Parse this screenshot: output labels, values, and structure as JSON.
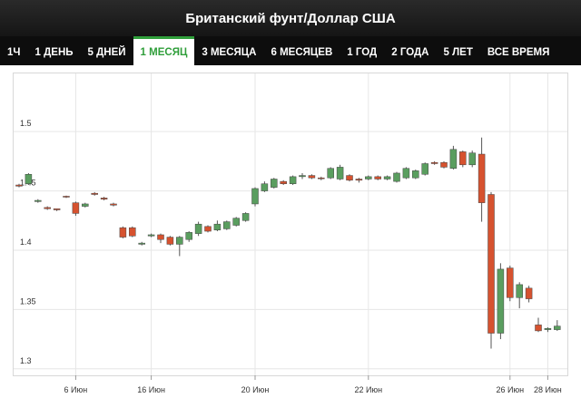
{
  "header": {
    "title": "Британский фунт/Доллар США"
  },
  "tabs": {
    "items": [
      "1Ч",
      "1 ДЕНЬ",
      "5 ДНЕЙ",
      "1 МЕСЯЦ",
      "3 МЕСЯЦА",
      "6 МЕСЯЦЕВ",
      "1 ГОД",
      "2 ГОДА",
      "5 ЛЕТ",
      "ВСЕ ВРЕМЯ"
    ],
    "active": 3
  },
  "chart_data": {
    "type": "candlestick",
    "categories": [
      null,
      null,
      null,
      null,
      null,
      null,
      "6 Июн",
      null,
      null,
      null,
      null,
      null,
      null,
      null,
      "16 Июн",
      null,
      null,
      null,
      null,
      null,
      null,
      null,
      null,
      null,
      null,
      "20 Июн",
      null,
      null,
      null,
      null,
      null,
      null,
      null,
      null,
      null,
      null,
      null,
      "22 Июн",
      null,
      null,
      null,
      null,
      null,
      null,
      null,
      null,
      null,
      null,
      null,
      null,
      null,
      null,
      "26 Июн",
      null,
      null,
      null,
      "28 Июн",
      null
    ],
    "open": [
      1.455,
      1.456,
      1.441,
      1.436,
      1.435,
      1.4455,
      1.44,
      1.437,
      1.448,
      1.444,
      1.439,
      1.419,
      1.419,
      1.405,
      1.412,
      1.413,
      1.411,
      1.405,
      1.409,
      1.414,
      1.42,
      1.417,
      1.418,
      1.421,
      1.425,
      1.439,
      1.45,
      1.453,
      1.458,
      1.456,
      1.462,
      1.463,
      1.461,
      1.461,
      1.46,
      1.463,
      1.46,
      1.46,
      1.462,
      1.46,
      1.458,
      1.461,
      1.461,
      1.464,
      1.474,
      1.474,
      1.469,
      1.483,
      1.472,
      1.481,
      1.447,
      1.33,
      1.385,
      1.36,
      1.368,
      1.337,
      1.333,
      1.333
    ],
    "high": [
      1.456,
      1.465,
      1.443,
      1.437,
      1.435,
      1.446,
      1.441,
      1.44,
      1.449,
      1.445,
      1.44,
      1.42,
      1.42,
      1.407,
      1.414,
      1.414,
      1.412,
      1.412,
      1.416,
      1.424,
      1.421,
      1.425,
      1.425,
      1.428,
      1.432,
      1.453,
      1.458,
      1.461,
      1.459,
      1.463,
      1.465,
      1.464,
      1.462,
      1.47,
      1.472,
      1.464,
      1.461,
      1.463,
      1.463,
      1.463,
      1.466,
      1.47,
      1.468,
      1.474,
      1.475,
      1.475,
      1.488,
      1.484,
      1.484,
      1.495,
      1.449,
      1.389,
      1.387,
      1.373,
      1.37,
      1.343,
      1.335,
      1.341
    ],
    "low": [
      1.453,
      1.455,
      1.44,
      1.434,
      1.433,
      1.444,
      1.429,
      1.436,
      1.446,
      1.442,
      1.437,
      1.41,
      1.411,
      1.404,
      1.411,
      1.406,
      1.404,
      1.395,
      1.407,
      1.412,
      1.415,
      1.416,
      1.417,
      1.42,
      1.424,
      1.437,
      1.449,
      1.452,
      1.455,
      1.455,
      1.46,
      1.46,
      1.459,
      1.46,
      1.459,
      1.458,
      1.457,
      1.459,
      1.459,
      1.459,
      1.457,
      1.46,
      1.46,
      1.463,
      1.472,
      1.469,
      1.468,
      1.47,
      1.47,
      1.424,
      1.317,
      1.325,
      1.357,
      1.351,
      1.356,
      1.331,
      1.331,
      1.332
    ],
    "close": [
      1.454,
      1.464,
      1.442,
      1.435,
      1.434,
      1.445,
      1.431,
      1.439,
      1.447,
      1.443,
      1.438,
      1.411,
      1.412,
      1.406,
      1.413,
      1.409,
      1.405,
      1.411,
      1.415,
      1.422,
      1.416,
      1.422,
      1.424,
      1.427,
      1.431,
      1.452,
      1.456,
      1.46,
      1.456,
      1.462,
      1.463,
      1.461,
      1.4605,
      1.469,
      1.47,
      1.459,
      1.459,
      1.462,
      1.46,
      1.462,
      1.465,
      1.469,
      1.467,
      1.473,
      1.473,
      1.47,
      1.485,
      1.472,
      1.482,
      1.44,
      1.33,
      1.384,
      1.36,
      1.371,
      1.359,
      1.332,
      1.334,
      1.336
    ],
    "up_color": "#5a9e5f",
    "down_color": "#d6522f",
    "ylim": [
      1.296,
      1.546
    ],
    "yticks": [
      1.3,
      1.35,
      1.4,
      1.45,
      1.5
    ],
    "grid": true
  }
}
